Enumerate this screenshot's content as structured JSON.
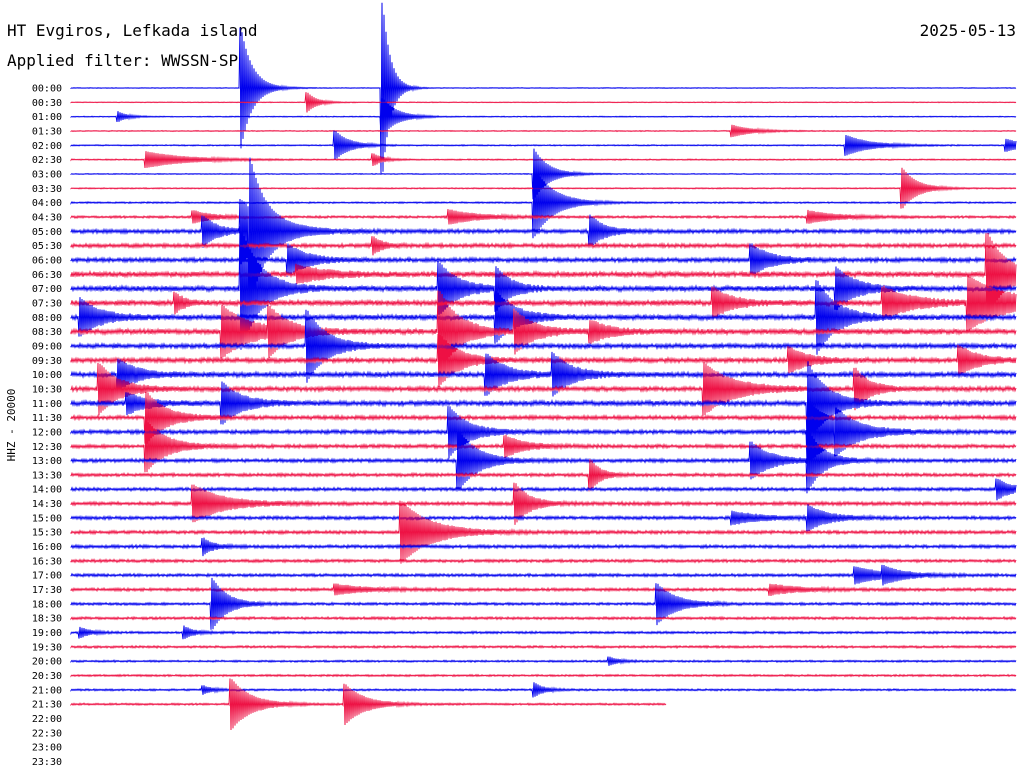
{
  "header": {
    "station": "HT Evgiros, Lefkada island",
    "filter": "Applied filter: WWSSN-SP",
    "date": "2025-05-13"
  },
  "chart_data": {
    "type": "line",
    "title": "HT Evgiros, Lefkada island",
    "subtitle": "Applied filter: WWSSN-SP",
    "date": "2025-05-13",
    "ylabel": "HHZ - 20000",
    "colors": {
      "even_rows": "#0000ee",
      "odd_rows": "#ee1144"
    },
    "grid": false,
    "rows": [
      {
        "label": "00:00",
        "color": "blue",
        "end_fraction": 1.0,
        "noise": 0.25
      },
      {
        "label": "00:30",
        "color": "red",
        "end_fraction": 1.0,
        "noise": 0.25
      },
      {
        "label": "01:00",
        "color": "blue",
        "end_fraction": 1.0,
        "noise": 0.3
      },
      {
        "label": "01:30",
        "color": "red",
        "end_fraction": 1.0,
        "noise": 0.3
      },
      {
        "label": "02:00",
        "color": "blue",
        "end_fraction": 1.0,
        "noise": 0.4
      },
      {
        "label": "02:30",
        "color": "red",
        "end_fraction": 1.0,
        "noise": 0.4
      },
      {
        "label": "03:00",
        "color": "blue",
        "end_fraction": 1.0,
        "noise": 0.3
      },
      {
        "label": "03:30",
        "color": "red",
        "end_fraction": 1.0,
        "noise": 0.4
      },
      {
        "label": "04:00",
        "color": "blue",
        "end_fraction": 1.0,
        "noise": 0.5
      },
      {
        "label": "04:30",
        "color": "red",
        "end_fraction": 1.0,
        "noise": 0.7
      },
      {
        "label": "05:00",
        "color": "blue",
        "end_fraction": 1.0,
        "noise": 1.2
      },
      {
        "label": "05:30",
        "color": "red",
        "end_fraction": 1.0,
        "noise": 1.2
      },
      {
        "label": "06:00",
        "color": "blue",
        "end_fraction": 1.0,
        "noise": 1.3
      },
      {
        "label": "06:30",
        "color": "red",
        "end_fraction": 1.0,
        "noise": 1.6
      },
      {
        "label": "07:00",
        "color": "blue",
        "end_fraction": 1.0,
        "noise": 1.6
      },
      {
        "label": "07:30",
        "color": "red",
        "end_fraction": 1.0,
        "noise": 1.6
      },
      {
        "label": "08:00",
        "color": "blue",
        "end_fraction": 1.0,
        "noise": 1.6
      },
      {
        "label": "08:30",
        "color": "red",
        "end_fraction": 1.0,
        "noise": 1.6
      },
      {
        "label": "09:00",
        "color": "blue",
        "end_fraction": 1.0,
        "noise": 1.4
      },
      {
        "label": "09:30",
        "color": "red",
        "end_fraction": 1.0,
        "noise": 1.4
      },
      {
        "label": "10:00",
        "color": "blue",
        "end_fraction": 1.0,
        "noise": 1.5
      },
      {
        "label": "10:30",
        "color": "red",
        "end_fraction": 1.0,
        "noise": 1.4
      },
      {
        "label": "11:00",
        "color": "blue",
        "end_fraction": 1.0,
        "noise": 1.5
      },
      {
        "label": "11:30",
        "color": "red",
        "end_fraction": 1.0,
        "noise": 1.2
      },
      {
        "label": "12:00",
        "color": "blue",
        "end_fraction": 1.0,
        "noise": 1.2
      },
      {
        "label": "12:30",
        "color": "red",
        "end_fraction": 1.0,
        "noise": 1.1
      },
      {
        "label": "13:00",
        "color": "blue",
        "end_fraction": 1.0,
        "noise": 1.1
      },
      {
        "label": "13:30",
        "color": "red",
        "end_fraction": 1.0,
        "noise": 1.0
      },
      {
        "label": "14:00",
        "color": "blue",
        "end_fraction": 1.0,
        "noise": 1.0
      },
      {
        "label": "14:30",
        "color": "red",
        "end_fraction": 1.0,
        "noise": 1.1
      },
      {
        "label": "15:00",
        "color": "blue",
        "end_fraction": 1.0,
        "noise": 1.0
      },
      {
        "label": "15:30",
        "color": "red",
        "end_fraction": 1.0,
        "noise": 1.0
      },
      {
        "label": "16:00",
        "color": "blue",
        "end_fraction": 1.0,
        "noise": 1.0
      },
      {
        "label": "16:30",
        "color": "red",
        "end_fraction": 1.0,
        "noise": 0.9
      },
      {
        "label": "17:00",
        "color": "blue",
        "end_fraction": 1.0,
        "noise": 0.9
      },
      {
        "label": "17:30",
        "color": "red",
        "end_fraction": 1.0,
        "noise": 0.9
      },
      {
        "label": "18:00",
        "color": "blue",
        "end_fraction": 1.0,
        "noise": 0.8
      },
      {
        "label": "18:30",
        "color": "red",
        "end_fraction": 1.0,
        "noise": 0.8
      },
      {
        "label": "19:00",
        "color": "blue",
        "end_fraction": 1.0,
        "noise": 0.7
      },
      {
        "label": "19:30",
        "color": "red",
        "end_fraction": 1.0,
        "noise": 0.7
      },
      {
        "label": "20:00",
        "color": "blue",
        "end_fraction": 1.0,
        "noise": 0.6
      },
      {
        "label": "20:30",
        "color": "red",
        "end_fraction": 1.0,
        "noise": 0.6
      },
      {
        "label": "21:00",
        "color": "blue",
        "end_fraction": 1.0,
        "noise": 0.6
      },
      {
        "label": "21:30",
        "color": "red",
        "end_fraction": 0.63,
        "noise": 0.6
      },
      {
        "label": "22:00",
        "color": "blue",
        "end_fraction": 0.0,
        "noise": 0
      },
      {
        "label": "22:30",
        "color": "red",
        "end_fraction": 0.0,
        "noise": 0
      },
      {
        "label": "23:00",
        "color": "blue",
        "end_fraction": 0.0,
        "noise": 0
      },
      {
        "label": "23:30",
        "color": "red",
        "end_fraction": 0.0,
        "noise": 0
      }
    ],
    "events": [
      {
        "row": 0,
        "t": 0.18,
        "amp": 60,
        "dur": 0.012
      },
      {
        "row": 0,
        "t": 0.33,
        "amp": 85,
        "dur": 0.008
      },
      {
        "row": 1,
        "t": 0.25,
        "amp": 10,
        "dur": 0.01
      },
      {
        "row": 2,
        "t": 0.33,
        "amp": 18,
        "dur": 0.015
      },
      {
        "row": 2,
        "t": 0.05,
        "amp": 5,
        "dur": 0.01
      },
      {
        "row": 3,
        "t": 0.7,
        "amp": 6,
        "dur": 0.02
      },
      {
        "row": 4,
        "t": 0.28,
        "amp": 14,
        "dur": 0.015
      },
      {
        "row": 4,
        "t": 0.82,
        "amp": 10,
        "dur": 0.025
      },
      {
        "row": 4,
        "t": 0.99,
        "amp": 6,
        "dur": 0.02
      },
      {
        "row": 5,
        "t": 0.08,
        "amp": 8,
        "dur": 0.04
      },
      {
        "row": 5,
        "t": 0.32,
        "amp": 6,
        "dur": 0.01
      },
      {
        "row": 6,
        "t": 0.49,
        "amp": 25,
        "dur": 0.015
      },
      {
        "row": 7,
        "t": 0.88,
        "amp": 20,
        "dur": 0.015
      },
      {
        "row": 8,
        "t": 0.49,
        "amp": 35,
        "dur": 0.02
      },
      {
        "row": 9,
        "t": 0.13,
        "amp": 6,
        "dur": 0.02
      },
      {
        "row": 9,
        "t": 0.4,
        "amp": 7,
        "dur": 0.03
      },
      {
        "row": 9,
        "t": 0.78,
        "amp": 6,
        "dur": 0.03
      },
      {
        "row": 10,
        "t": 0.14,
        "amp": 15,
        "dur": 0.015
      },
      {
        "row": 10,
        "t": 0.18,
        "amp": 30,
        "dur": 0.03
      },
      {
        "row": 10,
        "t": 0.19,
        "amp": 50,
        "dur": 0.015
      },
      {
        "row": 10,
        "t": 0.55,
        "amp": 15,
        "dur": 0.015
      },
      {
        "row": 11,
        "t": 0.32,
        "amp": 8,
        "dur": 0.01
      },
      {
        "row": 12,
        "t": 0.23,
        "amp": 15,
        "dur": 0.02
      },
      {
        "row": 12,
        "t": 0.72,
        "amp": 15,
        "dur": 0.02
      },
      {
        "row": 13,
        "t": 0.24,
        "amp": 8,
        "dur": 0.03
      },
      {
        "row": 13,
        "t": 0.97,
        "amp": 40,
        "dur": 0.02
      },
      {
        "row": 14,
        "t": 0.18,
        "amp": 60,
        "dur": 0.02
      },
      {
        "row": 14,
        "t": 0.39,
        "amp": 25,
        "dur": 0.02
      },
      {
        "row": 14,
        "t": 0.45,
        "amp": 20,
        "dur": 0.015
      },
      {
        "row": 14,
        "t": 0.81,
        "amp": 20,
        "dur": 0.02
      },
      {
        "row": 15,
        "t": 0.11,
        "amp": 10,
        "dur": 0.01
      },
      {
        "row": 15,
        "t": 0.68,
        "amp": 14,
        "dur": 0.02
      },
      {
        "row": 15,
        "t": 0.86,
        "amp": 15,
        "dur": 0.03
      },
      {
        "row": 15,
        "t": 0.95,
        "amp": 25,
        "dur": 0.04
      },
      {
        "row": 16,
        "t": 0.01,
        "amp": 18,
        "dur": 0.02
      },
      {
        "row": 16,
        "t": 0.45,
        "amp": 25,
        "dur": 0.02
      },
      {
        "row": 16,
        "t": 0.79,
        "amp": 35,
        "dur": 0.02
      },
      {
        "row": 17,
        "t": 0.16,
        "amp": 25,
        "dur": 0.03
      },
      {
        "row": 17,
        "t": 0.21,
        "amp": 20,
        "dur": 0.02
      },
      {
        "row": 17,
        "t": 0.39,
        "amp": 40,
        "dur": 0.02
      },
      {
        "row": 17,
        "t": 0.47,
        "amp": 20,
        "dur": 0.02
      },
      {
        "row": 17,
        "t": 0.55,
        "amp": 10,
        "dur": 0.02
      },
      {
        "row": 18,
        "t": 0.25,
        "amp": 35,
        "dur": 0.02
      },
      {
        "row": 19,
        "t": 0.39,
        "amp": 25,
        "dur": 0.02
      },
      {
        "row": 19,
        "t": 0.76,
        "amp": 12,
        "dur": 0.02
      },
      {
        "row": 19,
        "t": 0.94,
        "amp": 14,
        "dur": 0.02
      },
      {
        "row": 20,
        "t": 0.05,
        "amp": 15,
        "dur": 0.02
      },
      {
        "row": 20,
        "t": 0.44,
        "amp": 20,
        "dur": 0.02
      },
      {
        "row": 20,
        "t": 0.51,
        "amp": 20,
        "dur": 0.02
      },
      {
        "row": 21,
        "t": 0.03,
        "amp": 25,
        "dur": 0.02
      },
      {
        "row": 21,
        "t": 0.67,
        "amp": 25,
        "dur": 0.03
      },
      {
        "row": 21,
        "t": 0.83,
        "amp": 20,
        "dur": 0.015
      },
      {
        "row": 22,
        "t": 0.06,
        "amp": 10,
        "dur": 0.02
      },
      {
        "row": 22,
        "t": 0.16,
        "amp": 20,
        "dur": 0.02
      },
      {
        "row": 22,
        "t": 0.78,
        "amp": 40,
        "dur": 0.02
      },
      {
        "row": 23,
        "t": 0.08,
        "amp": 25,
        "dur": 0.02
      },
      {
        "row": 24,
        "t": 0.4,
        "amp": 25,
        "dur": 0.02
      },
      {
        "row": 24,
        "t": 0.78,
        "amp": 30,
        "dur": 0.03
      },
      {
        "row": 24,
        "t": 0.81,
        "amp": 12,
        "dur": 0.02
      },
      {
        "row": 25,
        "t": 0.08,
        "amp": 25,
        "dur": 0.02
      },
      {
        "row": 25,
        "t": 0.46,
        "amp": 10,
        "dur": 0.02
      },
      {
        "row": 26,
        "t": 0.41,
        "amp": 30,
        "dur": 0.02
      },
      {
        "row": 26,
        "t": 0.72,
        "amp": 18,
        "dur": 0.02
      },
      {
        "row": 26,
        "t": 0.78,
        "amp": 30,
        "dur": 0.015
      },
      {
        "row": 27,
        "t": 0.55,
        "amp": 15,
        "dur": 0.01
      },
      {
        "row": 28,
        "t": 0.98,
        "amp": 10,
        "dur": 0.015
      },
      {
        "row": 29,
        "t": 0.13,
        "amp": 18,
        "dur": 0.03
      },
      {
        "row": 29,
        "t": 0.47,
        "amp": 20,
        "dur": 0.015
      },
      {
        "row": 30,
        "t": 0.78,
        "amp": 12,
        "dur": 0.02
      },
      {
        "row": 30,
        "t": 0.7,
        "amp": 6,
        "dur": 0.03
      },
      {
        "row": 31,
        "t": 0.35,
        "amp": 30,
        "dur": 0.03
      },
      {
        "row": 32,
        "t": 0.14,
        "amp": 8,
        "dur": 0.01
      },
      {
        "row": 34,
        "t": 0.83,
        "amp": 8,
        "dur": 0.03
      },
      {
        "row": 34,
        "t": 0.86,
        "amp": 6,
        "dur": 0.02
      },
      {
        "row": 35,
        "t": 0.28,
        "amp": 5,
        "dur": 0.03
      },
      {
        "row": 35,
        "t": 0.74,
        "amp": 5,
        "dur": 0.03
      },
      {
        "row": 36,
        "t": 0.15,
        "amp": 25,
        "dur": 0.015
      },
      {
        "row": 36,
        "t": 0.62,
        "amp": 20,
        "dur": 0.02
      },
      {
        "row": 38,
        "t": 0.12,
        "amp": 6,
        "dur": 0.01
      },
      {
        "row": 38,
        "t": 0.01,
        "amp": 5,
        "dur": 0.01
      },
      {
        "row": 40,
        "t": 0.57,
        "amp": 4,
        "dur": 0.01
      },
      {
        "row": 42,
        "t": 0.49,
        "amp": 7,
        "dur": 0.01
      },
      {
        "row": 42,
        "t": 0.14,
        "amp": 4,
        "dur": 0.01
      },
      {
        "row": 43,
        "t": 0.17,
        "amp": 25,
        "dur": 0.02
      },
      {
        "row": 43,
        "t": 0.29,
        "amp": 20,
        "dur": 0.02
      }
    ]
  }
}
